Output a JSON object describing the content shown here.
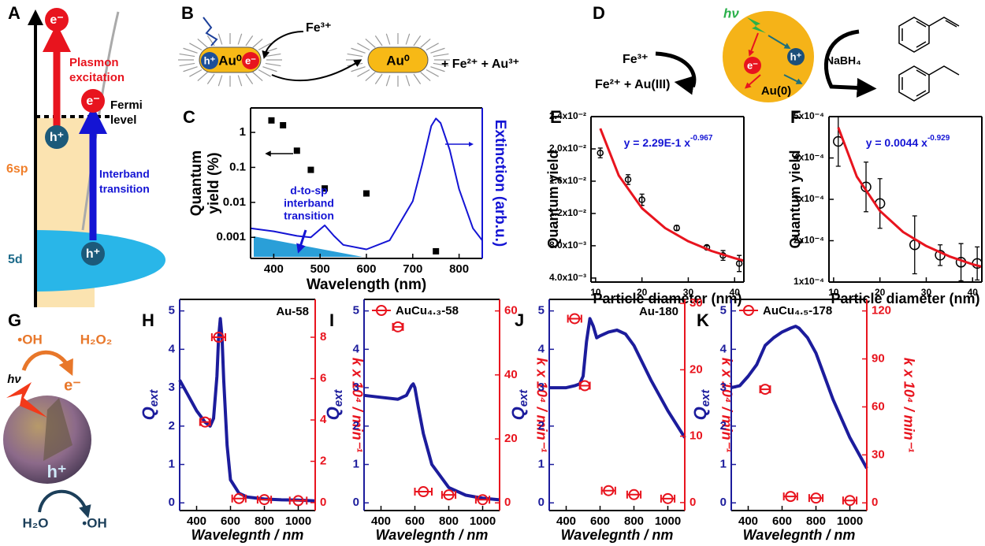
{
  "panel_labels": [
    "A",
    "B",
    "C",
    "D",
    "E",
    "F",
    "G",
    "H",
    "I",
    "J",
    "K"
  ],
  "diagram_a": {
    "top_electron": "e⁻",
    "plasmon_label": [
      "Plasmon",
      "excitation"
    ],
    "hole_1": "h⁺",
    "electron_2": "e⁻",
    "fermi_label": [
      "Fermi",
      "level"
    ],
    "band_6sp": "6sp",
    "interband_label": [
      "Interband",
      "transition"
    ],
    "band_5d": "5d",
    "hole_2": "h⁺"
  },
  "diagram_b": {
    "hole": "h⁺",
    "particle_1": "Au⁰",
    "electron": "e⁻",
    "oxidant": "Fe³⁺",
    "particle_2": "Au⁰",
    "products": "+ Fe²⁺ + Au³⁺"
  },
  "diagram_d": {
    "light": "hν",
    "oxidant": "Fe³⁺",
    "products": "Fe²⁺ + Au(III)",
    "electron": "e⁻",
    "hole": "h⁺",
    "particle": "Au(0)",
    "reductant": "NaBH₄"
  },
  "diagram_g": {
    "radical_1": "•OH",
    "peroxide": "H₂O₂",
    "light": "hν",
    "electron": "e⁻",
    "hole": "h⁺",
    "water": "H₂O",
    "radical_2": "•OH"
  },
  "chart_data": [
    {
      "type": "scatter",
      "x_label": "Wavelength (nm)",
      "y_label": [
        "Quantum",
        "yield (%)"
      ],
      "y2_label": "Extinction (arb.u.)",
      "annotation": [
        "d-to-sp",
        "interband",
        "transition"
      ],
      "xlim": [
        350,
        850
      ],
      "xticks": [
        400,
        500,
        600,
        700,
        800
      ],
      "ylim": [
        0.00025,
        5
      ],
      "yticks": [
        0.001,
        0.01,
        0.1,
        1
      ],
      "log_y": true,
      "y2lim": [
        0,
        1
      ],
      "y_axis_color": "#000000",
      "y2_axis_color": "#1414d4",
      "series": [
        {
          "type": "scatter",
          "marker": "square",
          "color": "#000000",
          "x": [
            395,
            420,
            450,
            480,
            510,
            600,
            750
          ],
          "values": [
            2.2,
            1.6,
            0.3,
            0.085,
            0.025,
            0.018,
            0.0004
          ]
        },
        {
          "type": "line",
          "axis": "y2",
          "color": "#1414d4",
          "x": [
            350,
            400,
            450,
            480,
            510,
            530,
            550,
            600,
            650,
            700,
            720,
            740,
            750,
            760,
            780,
            800,
            830,
            850
          ],
          "values": [
            0.2,
            0.18,
            0.15,
            0.14,
            0.22,
            0.15,
            0.09,
            0.06,
            0.12,
            0.38,
            0.62,
            0.88,
            0.93,
            0.9,
            0.72,
            0.46,
            0.2,
            0.12
          ]
        }
      ]
    },
    {
      "type": "scatter",
      "x_label": "Particle diameter (nm)",
      "y_label": "Quantum yield",
      "fit_label": "y = 2.29E-1 x",
      "fit_exponent": "-0.967",
      "xlim": [
        9,
        42
      ],
      "xticks": [
        10,
        20,
        30,
        40
      ],
      "ylim": [
        0.0035,
        0.024
      ],
      "yticks": [
        {
          "value": 0.004,
          "label": "4.0x10⁻³"
        },
        {
          "value": 0.008,
          "label": "8.0x10⁻³"
        },
        {
          "value": 0.012,
          "label": "1.2x10⁻²"
        },
        {
          "value": 0.016,
          "label": "1.6x10⁻²"
        },
        {
          "value": 0.02,
          "label": "2.0x10⁻²"
        },
        {
          "value": 0.024,
          "label": "2.4x10⁻²"
        }
      ],
      "y_axis_color": "#000000",
      "series": [
        {
          "type": "scatter",
          "marker": "circle",
          "color": "#000000",
          "x": [
            11,
            17,
            20,
            27.5,
            34,
            37.5,
            41
          ],
          "values": [
            0.0195,
            0.0162,
            0.0137,
            0.0102,
            0.0078,
            0.0068,
            0.0058
          ],
          "yerr": [
            0.0006,
            0.0006,
            0.0007,
            0.0003,
            0.0002,
            0.0006,
            0.001
          ]
        },
        {
          "type": "line",
          "color": "#e8141e",
          "x": [
            11,
            15,
            20,
            25,
            30,
            35,
            40,
            42
          ],
          "values": [
            0.02253,
            0.01669,
            0.01265,
            0.01019,
            0.00855,
            0.00736,
            0.00646,
            0.00616
          ]
        }
      ]
    },
    {
      "type": "scatter",
      "x_label": "Particle diameter (nm)",
      "y_label": "Quantum yield",
      "fit_label": "y = 0.0044 x",
      "fit_exponent": "-0.929",
      "xlim": [
        9,
        42
      ],
      "xticks": [
        10,
        20,
        30,
        40
      ],
      "ylim": [
        0.0001,
        0.0005
      ],
      "yticks": [
        {
          "value": 0.0001,
          "label": "1x10⁻⁴"
        },
        {
          "value": 0.0002,
          "label": "2x10⁻⁴"
        },
        {
          "value": 0.0003,
          "label": "3x10⁻⁴"
        },
        {
          "value": 0.0004,
          "label": "4x10⁻⁴"
        },
        {
          "value": 0.0005,
          "label": "5x10⁻⁴"
        }
      ],
      "y_axis_color": "#000000",
      "series": [
        {
          "type": "scatter",
          "marker": "circle",
          "color": "#000000",
          "x": [
            11,
            17,
            20,
            27.5,
            33,
            37.5,
            41
          ],
          "values": [
            0.00044,
            0.00033,
            0.00029,
            0.00019,
            0.000165,
            0.000148,
            0.000145
          ],
          "yerr": [
            6e-05,
            6e-05,
            6e-05,
            7e-05,
            2.5e-05,
            4.5e-05,
            4e-05
          ]
        },
        {
          "type": "line",
          "color": "#e8141e",
          "x": [
            11,
            15,
            20,
            25,
            30,
            35,
            40,
            42
          ],
          "values": [
            0.000474,
            0.000355,
            0.000272,
            0.000221,
            0.000187,
            0.000162,
            0.000143,
            0.000137
          ]
        }
      ]
    },
    {
      "type": "line",
      "x_label": "Wavelegnth / nm",
      "y_label": "Q",
      "y_label_sub": "ext",
      "y2_label": "k x 10⁴ / min⁻¹",
      "label": "Au-58",
      "xlim": [
        300,
        1100
      ],
      "xticks": [
        400,
        600,
        800,
        1000
      ],
      "ylim": [
        -0.2,
        5.3
      ],
      "yticks": [
        0,
        1,
        2,
        3,
        4,
        5
      ],
      "y2lim": [
        -0.38,
        9.83
      ],
      "y2ticks": [
        0,
        2,
        4,
        6,
        8
      ],
      "y_axis_color": "#1c1c9c",
      "y2_axis_color": "#e8141e",
      "series": [
        {
          "type": "line",
          "color": "#1c1c9c",
          "x": [
            300,
            350,
            400,
            450,
            480,
            500,
            520,
            530,
            540,
            550,
            560,
            580,
            600,
            650,
            700,
            800,
            900,
            1000,
            1100
          ],
          "values": [
            3.2,
            2.8,
            2.4,
            2.1,
            2.0,
            2.2,
            3.3,
            4.3,
            4.8,
            4.3,
            3.2,
            1.5,
            0.6,
            0.25,
            0.15,
            0.1,
            0.08,
            0.07,
            0.05
          ]
        },
        {
          "type": "scatter",
          "marker": "circle",
          "axis": "y2",
          "color": "#e8141e",
          "x": [
            450,
            530,
            650,
            800,
            1000
          ],
          "values": [
            3.9,
            8.0,
            0.2,
            0.15,
            0.1
          ],
          "xerr": [
            30,
            40,
            40,
            40,
            50
          ]
        }
      ]
    },
    {
      "type": "line",
      "x_label": "Wavelegnth / nm",
      "y_label": "Q",
      "y_label_sub": "ext",
      "y2_label": "k x 10⁴ / min⁻¹",
      "legend": "upper left",
      "xlim": [
        300,
        1100
      ],
      "xticks": [
        400,
        600,
        800,
        1000
      ],
      "ylim": [
        -0.2,
        5.3
      ],
      "yticks": [
        0,
        1,
        2,
        3,
        4,
        5
      ],
      "y2lim": [
        -2.4,
        63.6
      ],
      "y2ticks": [
        0,
        20,
        40,
        60
      ],
      "y_axis_color": "#1c1c9c",
      "y2_axis_color": "#e8141e",
      "series": [
        {
          "type": "line",
          "color": "#1c1c9c",
          "x": [
            300,
            400,
            500,
            550,
            580,
            590,
            600,
            620,
            650,
            700,
            800,
            900,
            1000,
            1100
          ],
          "values": [
            2.8,
            2.75,
            2.7,
            2.8,
            3.05,
            3.1,
            3.0,
            2.5,
            1.8,
            1.0,
            0.4,
            0.2,
            0.12,
            0.08
          ]
        },
        {
          "type": "scatter",
          "name": "AuCu₄.₃-58",
          "marker": "circle",
          "axis": "y2",
          "color": "#e8141e",
          "x": [
            500,
            650,
            800,
            1000
          ],
          "values": [
            55,
            3.5,
            2.5,
            1.0
          ],
          "xerr": [
            30,
            50,
            40,
            40
          ]
        }
      ]
    },
    {
      "type": "line",
      "x_label": "Wavelegnth / nm",
      "y_label": "Q",
      "y_label_sub": "ext",
      "y2_label": "k x 10⁴ / min⁻¹",
      "label": "Au-180",
      "xlim": [
        300,
        1100
      ],
      "xticks": [
        400,
        600,
        800,
        1000
      ],
      "ylim": [
        -0.2,
        5.3
      ],
      "yticks": [
        0,
        1,
        2,
        3,
        4,
        5
      ],
      "y2lim": [
        -1.2,
        30.6
      ],
      "y2ticks": [
        0,
        10,
        20,
        30
      ],
      "y_axis_color": "#1c1c9c",
      "y2_axis_color": "#e8141e",
      "series": [
        {
          "type": "line",
          "color": "#1c1c9c",
          "x": [
            300,
            400,
            450,
            480,
            500,
            520,
            540,
            560,
            580,
            600,
            650,
            700,
            750,
            800,
            900,
            1000,
            1100
          ],
          "values": [
            3.0,
            3.0,
            3.05,
            3.1,
            3.3,
            4.2,
            4.8,
            4.6,
            4.3,
            4.35,
            4.45,
            4.5,
            4.4,
            4.1,
            3.2,
            2.4,
            1.7
          ]
        },
        {
          "type": "scatter",
          "marker": "circle",
          "axis": "y2",
          "color": "#e8141e",
          "x": [
            450,
            510,
            650,
            800,
            1000
          ],
          "values": [
            27.7,
            17.6,
            1.8,
            1.2,
            0.6
          ],
          "xerr": [
            40,
            30,
            40,
            40,
            40
          ]
        }
      ]
    },
    {
      "type": "line",
      "x_label": "Wavelegnth / nm",
      "y_label": "Q",
      "y_label_sub": "ext",
      "y2_label": "k x 10⁴ / min⁻¹",
      "legend": "upper left",
      "xlim": [
        300,
        1100
      ],
      "xticks": [
        400,
        600,
        800,
        1000
      ],
      "ylim": [
        -0.2,
        5.3
      ],
      "yticks": [
        0,
        1,
        2,
        3,
        4,
        5
      ],
      "y2lim": [
        -4.8,
        127.2
      ],
      "y2ticks": [
        0,
        30,
        60,
        90,
        120
      ],
      "y_axis_color": "#1c1c9c",
      "y2_axis_color": "#e8141e",
      "series": [
        {
          "type": "line",
          "color": "#1c1c9c",
          "x": [
            300,
            350,
            400,
            450,
            500,
            550,
            600,
            650,
            680,
            700,
            750,
            800,
            850,
            900,
            1000,
            1100
          ],
          "values": [
            3.0,
            3.05,
            3.3,
            3.6,
            4.1,
            4.3,
            4.45,
            4.55,
            4.6,
            4.55,
            4.3,
            3.9,
            3.3,
            2.7,
            1.7,
            0.9
          ]
        },
        {
          "type": "scatter",
          "name": "AuCu₄.₅-178",
          "marker": "circle",
          "axis": "y2",
          "color": "#e8141e",
          "x": [
            500,
            650,
            800,
            1000
          ],
          "values": [
            71,
            4,
            3,
            1.5
          ],
          "xerr": [
            30,
            40,
            40,
            40
          ]
        }
      ]
    }
  ]
}
